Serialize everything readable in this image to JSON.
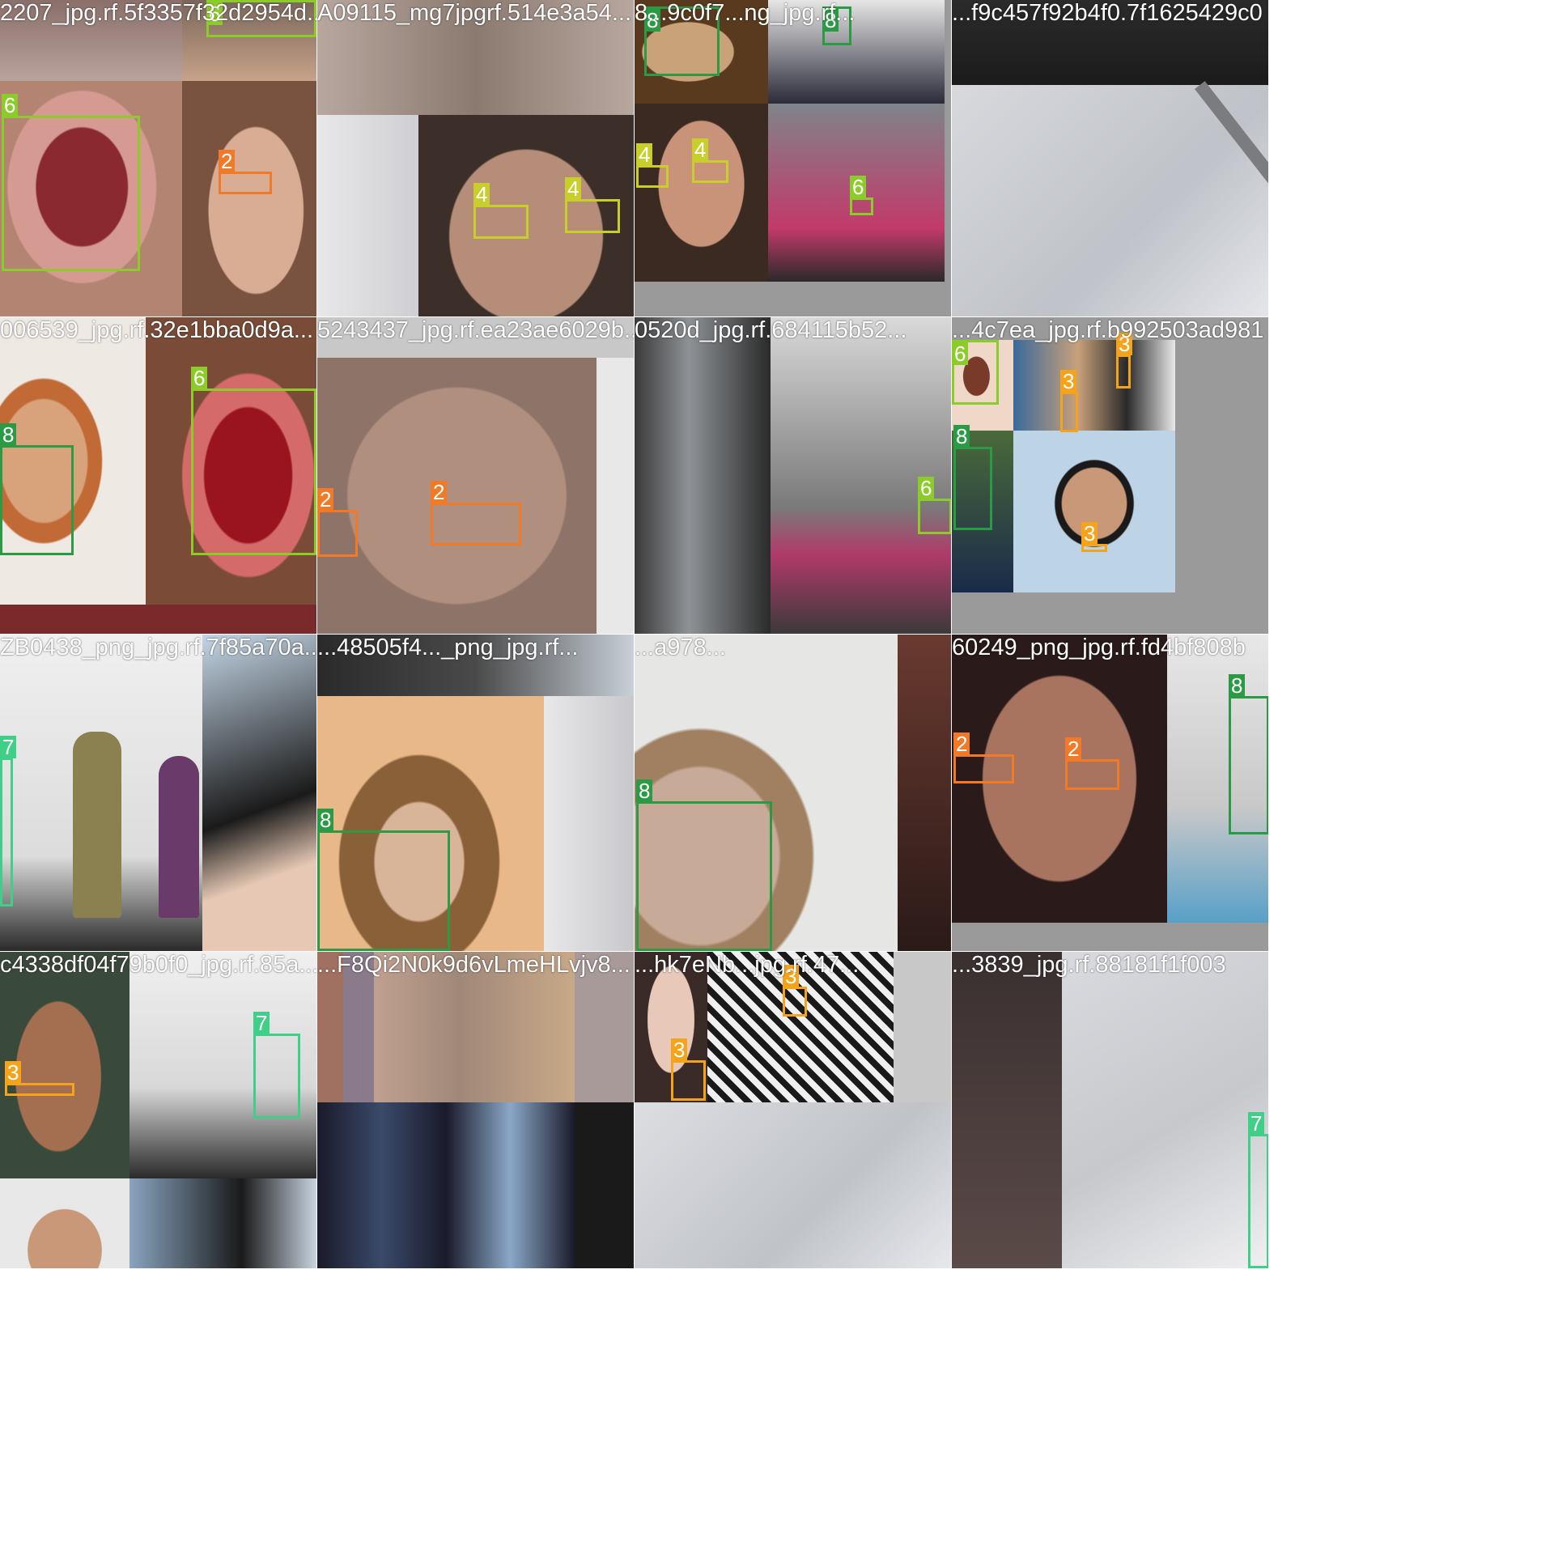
{
  "tiles": [
    {
      "caption": "2207_jpg.rf.5f3357f32d2954d...",
      "boxes": [
        {
          "cls": "6"
        },
        {
          "cls": "6"
        },
        {
          "cls": "2"
        }
      ]
    },
    {
      "caption": "A09115_mg7jpgrf.514e3a54...",
      "boxes": [
        {
          "cls": "4"
        },
        {
          "cls": "4"
        }
      ]
    },
    {
      "caption": "8...9c0f7...ng_jpg.rf...",
      "boxes": [
        {
          "cls": "8"
        },
        {
          "cls": "8"
        },
        {
          "cls": "4"
        },
        {
          "cls": "4"
        },
        {
          "cls": "6"
        }
      ]
    },
    {
      "caption": "...f9c457f92b4f0.7f1625429c0",
      "boxes": []
    },
    {
      "caption": "006539_jpg.rf.32e1bba0d9a...",
      "boxes": [
        {
          "cls": "8"
        },
        {
          "cls": "6"
        }
      ]
    },
    {
      "caption": "5243437_jpg.rf.ea23ae6029b...",
      "boxes": [
        {
          "cls": "2"
        },
        {
          "cls": "2"
        }
      ]
    },
    {
      "caption": "0520d_jpg.rf.684115b52...",
      "boxes": [
        {
          "cls": "6"
        }
      ]
    },
    {
      "caption": "...4c7ea_jpg.rf.b992503ad981",
      "boxes": [
        {
          "cls": "6"
        },
        {
          "cls": "3"
        },
        {
          "cls": "3"
        },
        {
          "cls": "8"
        },
        {
          "cls": "3"
        }
      ]
    },
    {
      "caption": "ZB0438_png_jpg.rf.7f85a70a...",
      "boxes": [
        {
          "cls": "7"
        }
      ]
    },
    {
      "caption": "...48505f4..._png_jpg.rf...",
      "boxes": [
        {
          "cls": "8"
        }
      ]
    },
    {
      "caption": "...a978...",
      "boxes": [
        {
          "cls": "8"
        }
      ]
    },
    {
      "caption": "60249_png_jpg.rf.fd4bf808b",
      "boxes": [
        {
          "cls": "2"
        },
        {
          "cls": "2"
        },
        {
          "cls": "8"
        }
      ]
    },
    {
      "caption": "c4338df04f79b0f0_jpg.rf.85a...",
      "boxes": [
        {
          "cls": "3"
        },
        {
          "cls": "7"
        }
      ]
    },
    {
      "caption": "...F8Qi2N0k9d6vLmeHLvjv8...",
      "boxes": []
    },
    {
      "caption": "...hk7eNb...jpg.rf.47...",
      "boxes": [
        {
          "cls": "3"
        },
        {
          "cls": "3"
        }
      ]
    },
    {
      "caption": "...3839_jpg.rf.88181f1f003",
      "boxes": [
        {
          "cls": "7"
        }
      ]
    }
  ]
}
